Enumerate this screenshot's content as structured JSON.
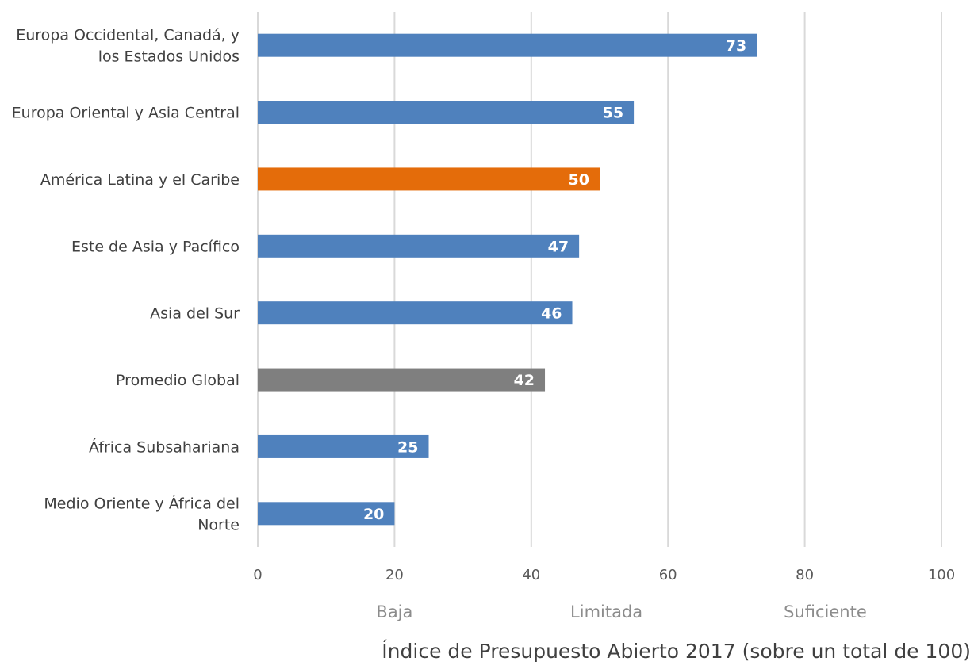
{
  "chart_data": {
    "type": "bar",
    "orientation": "horizontal",
    "categories": [
      [
        "Europa Occidental, Canadá, y",
        "los Estados Unidos"
      ],
      [
        "Europa Oriental y Asia Central"
      ],
      [
        "América Latina y el Caribe"
      ],
      [
        "Este de Asia y Pacífico"
      ],
      [
        "Asia del Sur"
      ],
      [
        "Promedio Global"
      ],
      [
        "África Subsahariana"
      ],
      [
        "Medio Oriente y África del",
        "Norte"
      ]
    ],
    "values": [
      73,
      55,
      50,
      47,
      46,
      42,
      25,
      20
    ],
    "data_labels": [
      "73",
      "55",
      "50",
      "47",
      "46",
      "42",
      "25",
      "20"
    ],
    "bar_colors": [
      "#4f81bd",
      "#4f81bd",
      "#e46c0a",
      "#4f81bd",
      "#4f81bd",
      "#7f7f7f",
      "#4f81bd",
      "#4f81bd"
    ],
    "xlim": [
      0,
      100
    ],
    "xticks": [
      0,
      20,
      40,
      60,
      80,
      100
    ],
    "xtick_labels": [
      "0",
      "20",
      "40",
      "60",
      "80",
      "100"
    ],
    "bands": [
      {
        "label": "Baja",
        "center": 20
      },
      {
        "label": "Limitada",
        "center": 51
      },
      {
        "label": "Suficiente",
        "center": 83
      }
    ],
    "xlabel": "Índice de Presupuesto Abierto 2017 (sobre un total de 100)",
    "grid": "vertical",
    "legend": "none",
    "gridline_color": "#d9d9d9"
  }
}
